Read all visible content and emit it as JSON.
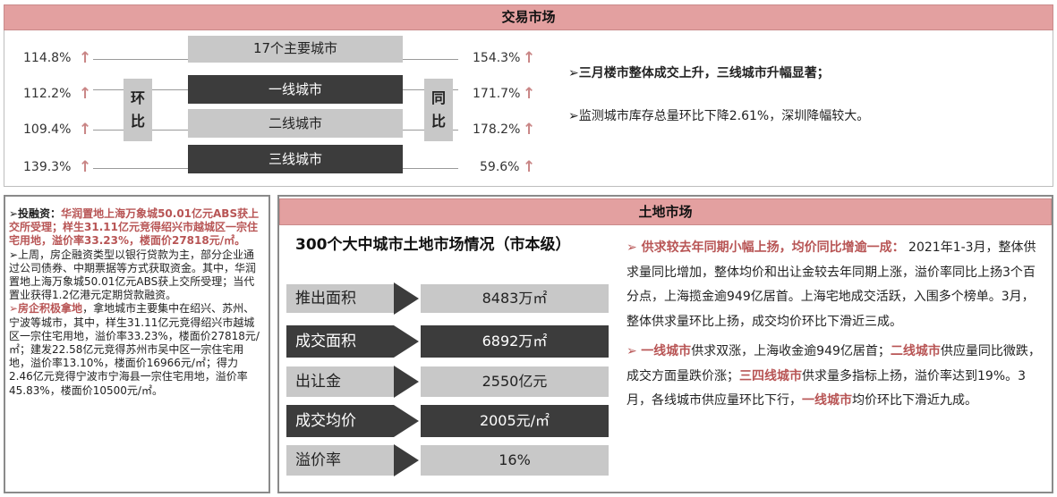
{
  "trade": {
    "header": "交易市场",
    "left_label": "环比",
    "right_label": "同比",
    "rows": [
      {
        "name": "17个主要城市",
        "mom": "114.8%",
        "yoy": "154.3%",
        "style": "light"
      },
      {
        "name": "一线城市",
        "mom": "112.2%",
        "yoy": "171.7%",
        "style": "dark"
      },
      {
        "name": "二线城市",
        "mom": "109.4%",
        "yoy": "178.2%",
        "style": "light"
      },
      {
        "name": "三线城市",
        "mom": "139.3%",
        "yoy": "59.6%",
        "style": "dark"
      }
    ],
    "up_arrow": "↑",
    "bullet1": "➢三月楼市整体成交上升，三线城市升幅显著；",
    "bullet2": "➢监测城市库存总量环比下降2.61%，深圳降幅较大。"
  },
  "finance": {
    "p1_label": "➢投融资：",
    "p1_red": "华润置地上海万象城50.01亿元ABS获上交所受理；样生31.11亿元竞得绍兴市越城区一宗住宅用地，溢价率33.23%，楼面价27818元/㎡。",
    "p2": "➢上周，房企融资类型以银行贷款为主，部分企业通过公司债券、中期票据等方式获取资金。其中，华润置地上海万象城50.01亿元ABS获上交所受理；当代置业获得1.2亿港元定期贷款融资。",
    "p3_red": "➢房企积极拿地",
    "p3": "，拿地城市主要集中在绍兴、苏州、宁波等城市，其中，样生31.11亿元竞得绍兴市越城区一宗住宅用地，溢价率33.23%，楼面价27818元/㎡；建发22.58亿元竞得苏州市吴中区一宗住宅用地，溢价率13.10%，楼面价16966元/㎡；得力2.46亿元竞得宁波市宁海县一宗住宅用地，溢价率45.83%，楼面价10500元/㎡。"
  },
  "land": {
    "header": "土地市场",
    "subtitle": "300个大中城市土地市场情况（市本级）",
    "rows": [
      {
        "label": "推出面积",
        "value": "8483万㎡",
        "style": "light"
      },
      {
        "label": "成交面积",
        "value": "6892万㎡",
        "style": "dark"
      },
      {
        "label": "出让金",
        "value": "2550亿元",
        "style": "light"
      },
      {
        "label": "成交均价",
        "value": "2005元/㎡",
        "style": "dark"
      },
      {
        "label": "溢价率",
        "value": "16%",
        "style": "light"
      }
    ],
    "r1_red": "➢ 供求较去年同期小幅上扬，均价同比增逾一成：",
    "r1": " 2021年1-3月，整体供求量同比增加，整体均价和出让金较去年同期上涨，溢价率同比上扬3个百分点，上海揽金逾949亿居首。上海宅地成交活跃，入围多个榜单。3月，整体供求量环比上扬，成交均价环比下滑近三成。",
    "r2_a": "➢ ",
    "r2_red1": "一线城市",
    "r2_b": "供求双涨，上海收金逾949亿居首；",
    "r2_red2": "二线城市",
    "r2_c": "供应量同比微跌，成交方面量跌价涨；",
    "r2_red3": "三四线城市",
    "r2_d": "供求量多指标上扬，溢价率达到19%。3月，各线城市供应量环比下行，",
    "r2_red4": "一线城市",
    "r2_e": "均价环比下滑近九成。"
  }
}
